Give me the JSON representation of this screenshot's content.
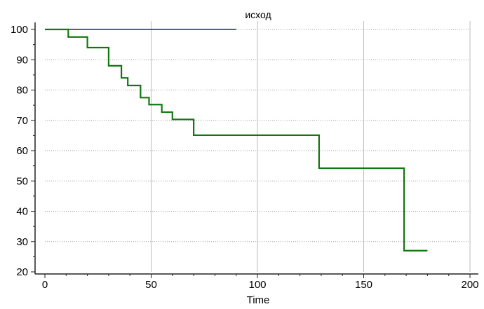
{
  "chart_data": {
    "type": "line",
    "title": "исход",
    "xlabel": "Time",
    "ylabel": "",
    "xlim": [
      0,
      200
    ],
    "ylim": [
      20,
      100
    ],
    "xticks": [
      0,
      50,
      100,
      150,
      200
    ],
    "yticks": [
      20,
      30,
      40,
      50,
      60,
      70,
      80,
      90,
      100
    ],
    "grid": true,
    "series": [
      {
        "color": "#1f1f8f",
        "step": true,
        "x": [
          0,
          90
        ],
        "y": [
          100,
          100
        ]
      },
      {
        "color": "#117711",
        "step": true,
        "x": [
          0,
          11,
          20,
          30,
          36,
          39,
          45,
          49,
          55,
          60,
          70,
          129,
          169,
          180
        ],
        "y": [
          100,
          97.5,
          94,
          88,
          84,
          81.5,
          77.5,
          75.2,
          72.7,
          70.3,
          65.1,
          54.2,
          27,
          27
        ]
      }
    ]
  }
}
